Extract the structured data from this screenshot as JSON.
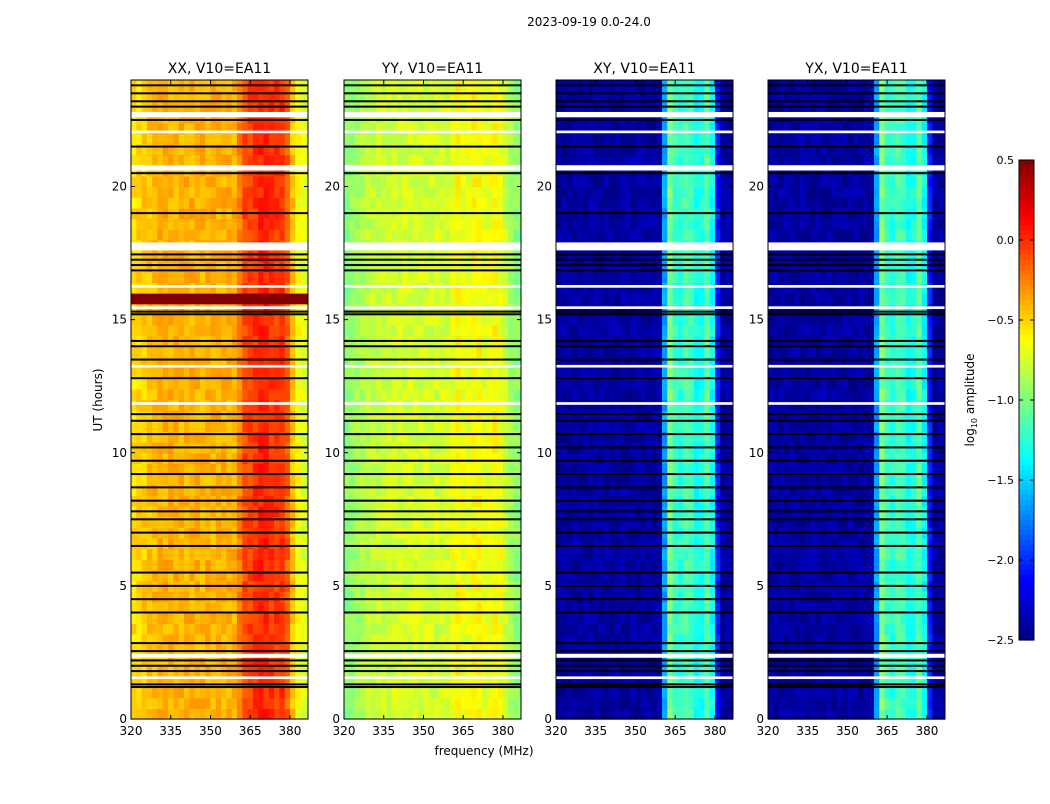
{
  "chart_data": {
    "type": "heatmap",
    "title": "2023-09-19 0.0-24.0",
    "xlabel": "frequency (MHz)",
    "ylabel": "UT (hours)",
    "xlim": [
      320,
      386.8
    ],
    "ylim": [
      0,
      24
    ],
    "xticks": [
      "320",
      "335",
      "350",
      "365",
      "380"
    ],
    "xtick_values": [
      320,
      335,
      350,
      365,
      380
    ],
    "yticks": [
      "0",
      "5",
      "10",
      "15",
      "20"
    ],
    "ytick_values": [
      0,
      5,
      10,
      15,
      20
    ],
    "colorbar": {
      "label": "log10 amplitude",
      "label_main": "log",
      "label_sub": "10",
      "label_rest": " amplitude",
      "range": [
        -2.5,
        0.5
      ],
      "ticks": [
        "0.5",
        "0.0",
        "−0.5",
        "−1.0",
        "−1.5",
        "−2.0",
        "−2.5"
      ],
      "tick_values": [
        0.5,
        0.0,
        -0.5,
        -1.0,
        -1.5,
        -2.0,
        -2.5
      ],
      "colormap": "jet"
    },
    "panels": [
      {
        "title": "XX, V10=EA11",
        "profile_freq": [
          320,
          330,
          340,
          350,
          360,
          362,
          366,
          370,
          374,
          378,
          382,
          386
        ],
        "profile_log_amp": [
          -0.55,
          -0.4,
          -0.4,
          -0.4,
          -0.4,
          -0.1,
          -0.05,
          0.05,
          -0.05,
          0.0,
          -0.6,
          -0.75
        ],
        "saturated_hours": [
          [
            15.5,
            16.2
          ],
          [
            1.15,
            1.4
          ]
        ]
      },
      {
        "title": "YY, V10=EA11",
        "profile_freq": [
          320,
          330,
          340,
          350,
          360,
          362,
          366,
          370,
          374,
          378,
          382,
          386
        ],
        "profile_log_amp": [
          -1.0,
          -0.8,
          -0.75,
          -0.75,
          -0.75,
          -0.6,
          -0.7,
          -0.6,
          -0.7,
          -0.6,
          -0.85,
          -1.0
        ],
        "saturated_hours": []
      },
      {
        "title": "XY, V10=EA11",
        "profile_freq": [
          320,
          330,
          340,
          350,
          360,
          362,
          366,
          370,
          374,
          378,
          382,
          386
        ],
        "profile_log_amp": [
          -2.4,
          -2.4,
          -2.4,
          -2.4,
          -2.4,
          -0.9,
          -1.3,
          -1.1,
          -1.4,
          -1.0,
          -2.4,
          -2.4
        ],
        "saturated_hours": []
      },
      {
        "title": "YX, V10=EA11",
        "profile_freq": [
          320,
          330,
          340,
          350,
          360,
          362,
          366,
          370,
          374,
          378,
          382,
          386
        ],
        "profile_log_amp": [
          -2.4,
          -2.4,
          -2.4,
          -2.4,
          -2.4,
          -0.9,
          -1.3,
          -1.1,
          -1.4,
          -1.0,
          -2.4,
          -2.4
        ],
        "saturated_hours": []
      }
    ],
    "flagged_hours": [
      1.2,
      1.3,
      1.8,
      2.0,
      2.2,
      2.55,
      2.85,
      4.0,
      4.5,
      5.0,
      5.5,
      6.5,
      7.0,
      7.5,
      7.8,
      8.2,
      8.7,
      9.2,
      9.7,
      10.2,
      10.7,
      11.2,
      11.45,
      12.8,
      13.5,
      14.0,
      14.2,
      15.2,
      15.3,
      16.85,
      17.05,
      17.25,
      17.45,
      19.0,
      20.5,
      21.5,
      22.5,
      23.0,
      23.2,
      23.5,
      23.8
    ],
    "gap_hours": [
      [
        1.5,
        1.6
      ],
      [
        2.3,
        2.45
      ],
      [
        11.8,
        11.9
      ],
      [
        13.2,
        13.3
      ],
      [
        15.4,
        15.5
      ],
      [
        16.2,
        16.3
      ],
      [
        17.6,
        17.9
      ],
      [
        20.6,
        20.8
      ],
      [
        22.0,
        22.1
      ],
      [
        22.6,
        22.8
      ]
    ]
  }
}
